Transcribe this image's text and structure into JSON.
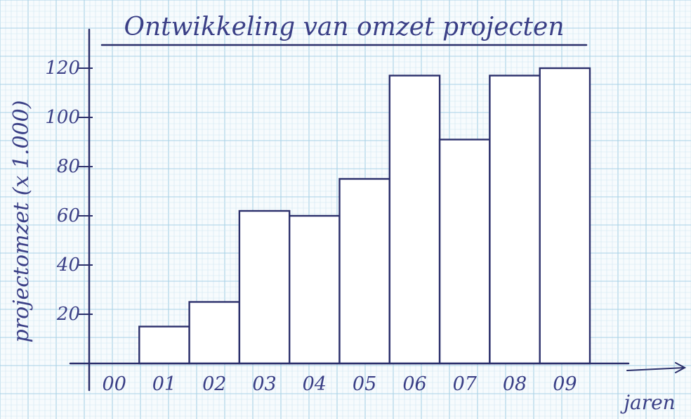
{
  "chart_data": {
    "type": "bar",
    "title": "Ontwikkeling van omzet projecten",
    "xlabel": "jaren",
    "ylabel": "projectomzet (x 1.000)",
    "categories": [
      "00",
      "01",
      "02",
      "03",
      "04",
      "05",
      "06",
      "07",
      "08",
      "09"
    ],
    "values": [
      0,
      15,
      25,
      62,
      60,
      75,
      117,
      91,
      117,
      120
    ],
    "ylim": [
      0,
      135
    ],
    "yticks": [
      20,
      40,
      60,
      80,
      100,
      120
    ],
    "ytick_labels": [
      "20",
      "40",
      "60",
      "80",
      "100",
      "120"
    ],
    "grid": true,
    "colors": {
      "paper": "#f7fbfd",
      "grid_minor": "#cfe6f1",
      "grid_major": "#a9d2e6",
      "ink": "#2b2f6b",
      "bar_fill": "#ffffff"
    }
  }
}
